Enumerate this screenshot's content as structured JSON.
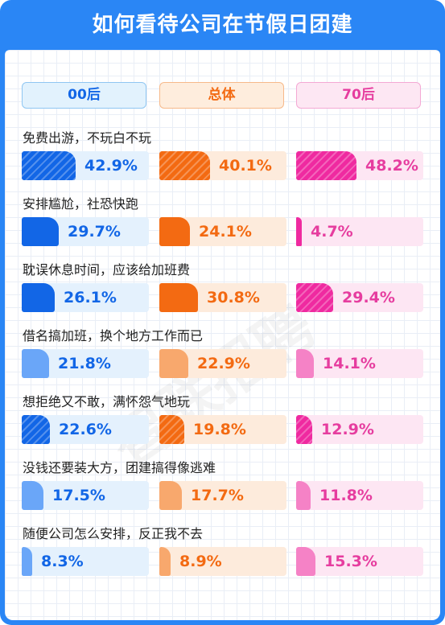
{
  "title": "如何看待公司在节假日团建",
  "watermark": "智联招聘",
  "colors": {
    "header_bg": "#2a86f5",
    "00hou": {
      "solid": "#1266e6",
      "light": "#6aa6f8",
      "track": "#e4f1fd",
      "text": "#1266e6",
      "pill_bg": "#e2f2fd",
      "pill_border": "#8fc6f2"
    },
    "zongti": {
      "solid": "#f36a12",
      "light": "#f8a86d",
      "track": "#fdebdc",
      "text": "#f36a12",
      "pill_bg": "#feeddd",
      "pill_border": "#f7b98a"
    },
    "70hou": {
      "solid": "#ef2aa0",
      "light": "#f582c6",
      "track": "#fde6f3",
      "text": "#e63d9f",
      "pill_bg": "#fde7f3",
      "pill_border": "#f4a9d4"
    }
  },
  "chart_data": {
    "type": "bar",
    "groups": [
      "00后",
      "总体",
      "70后"
    ],
    "categories": [
      "免费出游，不玩白不玩",
      "安排尴尬，社恐快跑",
      "耽误休息时间，应该给加班费",
      "借名搞加班，换个地方工作而已",
      "想拒绝又不敢，满怀怨气地玩",
      "没钱还要装大方，团建搞得像逃难",
      "随便公司怎么安排，反正我不去"
    ],
    "series": [
      {
        "name": "00后",
        "values": [
          42.9,
          29.7,
          26.1,
          21.8,
          22.6,
          17.5,
          8.3
        ]
      },
      {
        "name": "总体",
        "values": [
          40.1,
          24.1,
          30.8,
          22.9,
          19.8,
          17.7,
          8.9
        ]
      },
      {
        "name": "70后",
        "values": [
          48.2,
          4.7,
          29.4,
          14.1,
          12.9,
          11.8,
          15.3
        ]
      }
    ],
    "value_labels": [
      [
        "42.9%",
        "29.7%",
        "26.1%",
        "21.8%",
        "22.6%",
        "17.5%",
        "8.3%"
      ],
      [
        "40.1%",
        "24.1%",
        "30.8%",
        "22.9%",
        "19.8%",
        "17.7%",
        "8.9%"
      ],
      [
        "48.2%",
        "4.7%",
        "29.4%",
        "14.1%",
        "12.9%",
        "11.8%",
        "15.3%"
      ]
    ],
    "bar_style": [
      [
        "hatched",
        "solid",
        "solid",
        "light",
        "hatched",
        "light",
        "light"
      ],
      [
        "hatched",
        "solid",
        "solid",
        "light",
        "hatched",
        "light",
        "light"
      ],
      [
        "hatched",
        "solid",
        "hatched",
        "light",
        "hatched",
        "light",
        "light"
      ]
    ],
    "xlim": [
      0,
      100
    ],
    "grid": true
  }
}
